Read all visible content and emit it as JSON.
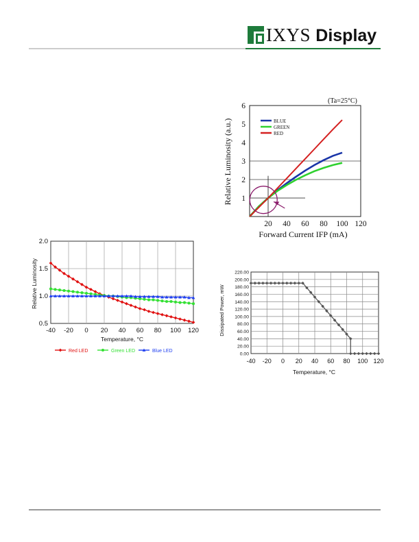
{
  "header": {
    "brand_name": "IXYS",
    "brand_suffix": "Display",
    "accent_color": "#1e7b3b"
  },
  "chart_data": [
    {
      "id": "chart1",
      "type": "line",
      "annotation": "(Ta=25°C)",
      "xlabel": "Forward Current  IFP (mA)",
      "ylabel": "Relative Luminosity (a.u.)",
      "xlim": [
        0,
        120
      ],
      "ylim": [
        0,
        6
      ],
      "xticks": [
        "20",
        "40",
        "60",
        "80",
        "100",
        "120"
      ],
      "yticks": [
        "1",
        "2",
        "3",
        "4",
        "5",
        "6"
      ],
      "legend_position": "top-left",
      "series": [
        {
          "name": "BLUE",
          "color": "#1a35a8",
          "x": [
            0,
            10,
            20,
            30,
            40,
            50,
            60,
            70,
            80,
            90,
            100
          ],
          "y": [
            0,
            0.55,
            1.0,
            1.42,
            1.8,
            2.15,
            2.48,
            2.78,
            3.05,
            3.28,
            3.45
          ]
        },
        {
          "name": "GREEN",
          "color": "#2fd12f",
          "x": [
            0,
            10,
            20,
            30,
            40,
            50,
            60,
            70,
            80,
            90,
            100
          ],
          "y": [
            0,
            0.55,
            1.0,
            1.38,
            1.7,
            1.98,
            2.23,
            2.45,
            2.63,
            2.78,
            2.9
          ]
        },
        {
          "name": "RED",
          "color": "#d42020",
          "x": [
            0,
            10,
            20,
            30,
            40,
            50,
            60,
            70,
            80,
            90,
            100
          ],
          "y": [
            0,
            0.5,
            1.0,
            1.53,
            2.06,
            2.59,
            3.12,
            3.65,
            4.18,
            4.71,
            5.22
          ]
        }
      ],
      "markers": {
        "circle_center": [
          15,
          0.9
        ]
      }
    },
    {
      "id": "chart2",
      "type": "line",
      "xlabel": "Temperature, °C",
      "ylabel": "Relative Luminosity",
      "xlim": [
        -40,
        120
      ],
      "ylim": [
        0.5,
        2.0
      ],
      "xticks": [
        "-40",
        "-20",
        "0",
        "20",
        "40",
        "60",
        "80",
        "100",
        "120"
      ],
      "yticks": [
        "0.5",
        "1.0",
        "1.5",
        "2.0"
      ],
      "legend_position": "bottom",
      "series": [
        {
          "name": "Red LED",
          "color": "#e01010",
          "marker": "diamond",
          "x": [
            -40,
            -35,
            -30,
            -25,
            -20,
            -15,
            -10,
            -5,
            0,
            5,
            10,
            15,
            20,
            25,
            30,
            35,
            40,
            45,
            50,
            55,
            60,
            65,
            70,
            75,
            80,
            85,
            90,
            95,
            100,
            105,
            110,
            115,
            120
          ],
          "y": [
            1.6,
            1.53,
            1.47,
            1.41,
            1.36,
            1.31,
            1.26,
            1.21,
            1.16,
            1.12,
            1.08,
            1.04,
            1.01,
            0.98,
            0.95,
            0.92,
            0.89,
            0.86,
            0.83,
            0.8,
            0.77,
            0.75,
            0.72,
            0.7,
            0.68,
            0.66,
            0.64,
            0.62,
            0.6,
            0.58,
            0.56,
            0.54,
            0.52
          ]
        },
        {
          "name": "Green LED",
          "color": "#33e033",
          "marker": "circle",
          "x": [
            -40,
            -35,
            -30,
            -25,
            -20,
            -15,
            -10,
            -5,
            0,
            5,
            10,
            15,
            20,
            25,
            30,
            35,
            40,
            45,
            50,
            55,
            60,
            65,
            70,
            75,
            80,
            85,
            90,
            95,
            100,
            105,
            110,
            115,
            120
          ],
          "y": [
            1.13,
            1.12,
            1.11,
            1.1,
            1.09,
            1.08,
            1.07,
            1.06,
            1.05,
            1.04,
            1.03,
            1.02,
            1.01,
            1.0,
            1.0,
            0.99,
            0.98,
            0.97,
            0.97,
            0.96,
            0.95,
            0.94,
            0.93,
            0.93,
            0.92,
            0.91,
            0.9,
            0.9,
            0.89,
            0.88,
            0.88,
            0.87,
            0.86
          ]
        },
        {
          "name": "Blue LED",
          "color": "#1f3ff0",
          "marker": "triangle",
          "x": [
            -40,
            -35,
            -30,
            -25,
            -20,
            -15,
            -10,
            -5,
            0,
            5,
            10,
            15,
            20,
            25,
            30,
            35,
            40,
            45,
            50,
            55,
            60,
            65,
            70,
            75,
            80,
            85,
            90,
            95,
            100,
            105,
            110,
            115,
            120
          ],
          "y": [
            1.0,
            1.0,
            1.0,
            1.0,
            1.0,
            1.0,
            1.0,
            1.0,
            1.0,
            1.0,
            1.0,
            1.0,
            1.0,
            1.0,
            1.0,
            1.0,
            1.0,
            1.0,
            1.0,
            0.99,
            0.99,
            0.99,
            0.99,
            0.99,
            0.99,
            0.98,
            0.98,
            0.98,
            0.98,
            0.98,
            0.98,
            0.97,
            0.97
          ]
        }
      ]
    },
    {
      "id": "chart3",
      "type": "line",
      "xlabel": "Temperature, °C",
      "ylabel": "Dissipated Power, mW",
      "xlim": [
        -40,
        120
      ],
      "ylim": [
        0,
        220
      ],
      "xticks": [
        "-40",
        "-20",
        "0",
        "20",
        "40",
        "60",
        "80",
        "100",
        "120"
      ],
      "yticks": [
        "0.00",
        "20.00",
        "40.00",
        "60.00",
        "80.00",
        "100.00",
        "120.00",
        "140.00",
        "160.00",
        "180.00",
        "200.00",
        "220.00"
      ],
      "series": [
        {
          "name": "",
          "color": "#555555",
          "marker": "diamond",
          "x": [
            -40,
            -35,
            -30,
            -25,
            -20,
            -15,
            -10,
            -5,
            0,
            5,
            10,
            15,
            20,
            25,
            30,
            35,
            40,
            45,
            50,
            55,
            60,
            65,
            70,
            75,
            80,
            85,
            85,
            90,
            95,
            100,
            105,
            110,
            115,
            120
          ],
          "y": [
            190,
            190,
            190,
            190,
            190,
            190,
            190,
            190,
            190,
            190,
            190,
            190,
            190,
            190,
            177.5,
            165,
            152.5,
            140,
            127.5,
            115,
            102.5,
            90,
            77.5,
            65,
            52.5,
            40,
            0,
            0,
            0,
            0,
            0,
            0,
            0,
            0
          ]
        }
      ]
    }
  ]
}
